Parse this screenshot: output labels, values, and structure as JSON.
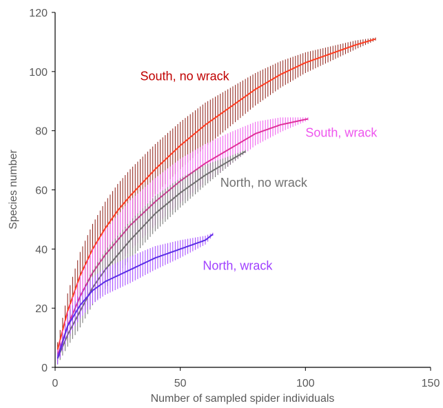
{
  "chart_data": {
    "type": "line",
    "title": "",
    "xlabel": "Number of sampled spider individuals",
    "ylabel": "Species number",
    "xlim": [
      0,
      150
    ],
    "ylim": [
      0,
      120
    ],
    "xticks": [
      0,
      50,
      100,
      150
    ],
    "yticks": [
      0,
      20,
      40,
      60,
      80,
      100,
      120
    ],
    "grid": false,
    "legend": "none (series labeled inline)",
    "error_bars": "vertical bars at every sample size",
    "series": [
      {
        "name": "South, no wrack",
        "color": "#ff3b1f",
        "error_color": "#8b1a12",
        "x": [
          1,
          5,
          10,
          15,
          20,
          25,
          30,
          40,
          50,
          60,
          70,
          80,
          90,
          100,
          110,
          120,
          128
        ],
        "y": [
          6,
          19,
          31,
          40,
          47,
          53,
          58,
          67,
          75,
          82,
          88,
          94,
          99,
          103,
          106,
          109,
          111
        ],
        "err": [
          2.5,
          6,
          8,
          8.5,
          9,
          9,
          9,
          8.5,
          8,
          7.5,
          6.5,
          5.5,
          4.5,
          3.5,
          2.5,
          1.5,
          0.5
        ],
        "label_text": "South, no wrack",
        "label_pos": [
          34,
          97
        ]
      },
      {
        "name": "South, wrack",
        "color": "#e0309a",
        "error_color": "#ee55ee",
        "x": [
          1,
          5,
          10,
          15,
          20,
          25,
          30,
          40,
          50,
          60,
          70,
          80,
          90,
          101
        ],
        "y": [
          4,
          14,
          24,
          32,
          38,
          43,
          48,
          56,
          63,
          69,
          74,
          79,
          82,
          84
        ],
        "err": [
          2,
          5,
          7,
          8,
          8.5,
          8.5,
          8.5,
          8,
          7.5,
          6.5,
          5.5,
          4,
          2.5,
          0.5
        ],
        "label_text": "South, wrack",
        "label_pos": [
          100,
          78
        ]
      },
      {
        "name": "North, no wrack",
        "color": "#707070",
        "error_color": "#707070",
        "x": [
          1,
          5,
          10,
          15,
          20,
          25,
          30,
          40,
          50,
          60,
          70,
          76
        ],
        "y": [
          3,
          11,
          19,
          27,
          33,
          38,
          43,
          52,
          59,
          65,
          70,
          73
        ],
        "err": [
          2,
          4,
          5.5,
          6,
          6.5,
          6.5,
          6.5,
          6,
          5,
          3.5,
          1.5,
          0.5
        ],
        "label_text": "North, no wrack",
        "label_pos": [
          66,
          61
        ]
      },
      {
        "name": "North, wrack",
        "color": "#5a2ee6",
        "error_color": "#a040ff",
        "x": [
          1,
          5,
          10,
          15,
          20,
          25,
          30,
          40,
          50,
          60,
          63
        ],
        "y": [
          3,
          14,
          21,
          26,
          29,
          31,
          33,
          37,
          40,
          43,
          45
        ],
        "err": [
          2,
          4,
          4.5,
          4.5,
          4.5,
          4.5,
          4.5,
          4,
          3,
          1.5,
          0.5
        ],
        "label_text": "North, wrack",
        "label_pos": [
          59,
          33
        ]
      }
    ]
  }
}
